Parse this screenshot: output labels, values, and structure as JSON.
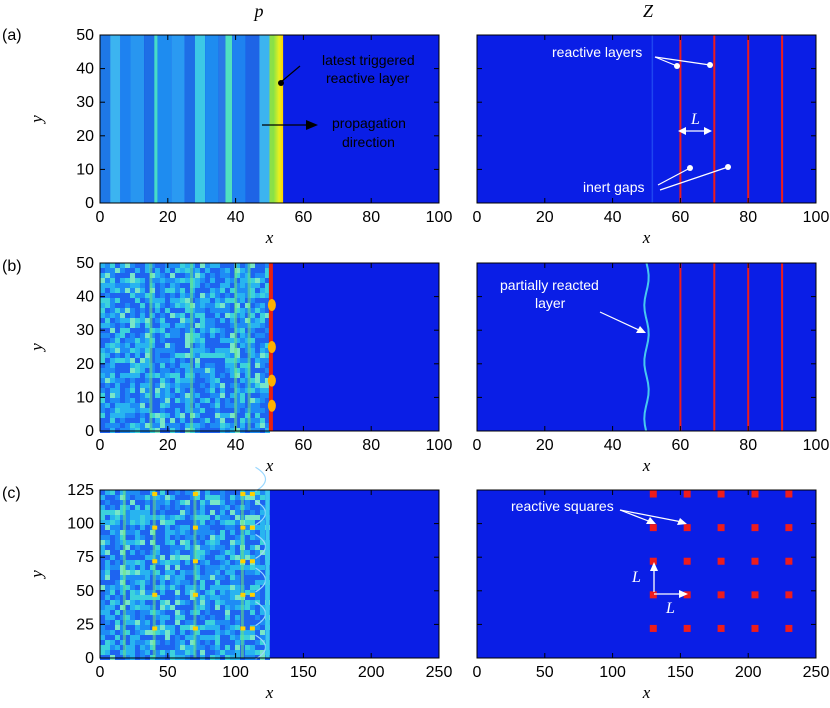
{
  "column_titles": [
    "p",
    "Z"
  ],
  "panel_labels": [
    "(a)",
    "(b)",
    "(c)"
  ],
  "x_label": "x",
  "y_label": "y",
  "rows": [
    {
      "label": "(a)",
      "x_ticks": [
        "0",
        "20",
        "40",
        "60",
        "80",
        "100"
      ],
      "y_ticks": [
        "0",
        "10",
        "20",
        "30",
        "40",
        "50"
      ],
      "x_range": [
        0,
        100
      ],
      "y_range": [
        0,
        50
      ]
    },
    {
      "label": "(b)",
      "x_ticks": [
        "0",
        "20",
        "40",
        "60",
        "80",
        "100"
      ],
      "y_ticks": [
        "0",
        "10",
        "20",
        "30",
        "40",
        "50"
      ],
      "x_range": [
        0,
        100
      ],
      "y_range": [
        0,
        50
      ]
    },
    {
      "label": "(c)",
      "x_ticks": [
        "0",
        "50",
        "100",
        "150",
        "200",
        "250"
      ],
      "y_ticks": [
        "0",
        "25",
        "50",
        "75",
        "100",
        "125"
      ],
      "x_range": [
        0,
        250
      ],
      "y_range": [
        0,
        125
      ]
    }
  ],
  "annotations": {
    "a_p_latest_1": "latest triggered",
    "a_p_latest_2": "reactive layer",
    "a_p_prop_1": "propagation",
    "a_p_prop_2": "direction",
    "a_z_reactive": "reactive layers",
    "a_z_L": "L",
    "a_z_inert": "inert gaps",
    "b_z_partial_1": "partially reacted",
    "b_z_partial_2": "layer",
    "c_z_squares": "reactive squares",
    "c_z_L1": "L",
    "c_z_L2": "L"
  },
  "colors": {
    "background_field": "#0a1ee6",
    "reactive": "#ee1c1c",
    "front": "#ffe600",
    "white": "#ffffff"
  },
  "chart_data": [
    {
      "type": "heatmap",
      "title": "p",
      "panel": "(a)",
      "xlabel": "x",
      "ylabel": "y",
      "xlim": [
        0,
        100
      ],
      "ylim": [
        0,
        50
      ],
      "front_x": 54
    },
    {
      "type": "heatmap",
      "title": "Z",
      "panel": "(a)",
      "xlabel": "x",
      "ylabel": "y",
      "xlim": [
        0,
        100
      ],
      "ylim": [
        0,
        50
      ],
      "reactive_layer_x": [
        60,
        70,
        80,
        90
      ]
    },
    {
      "type": "heatmap",
      "title": "p",
      "panel": "(b)",
      "xlabel": "x",
      "ylabel": "y",
      "xlim": [
        0,
        100
      ],
      "ylim": [
        0,
        50
      ],
      "front_x": 51
    },
    {
      "type": "heatmap",
      "title": "Z",
      "panel": "(b)",
      "xlabel": "x",
      "ylabel": "y",
      "xlim": [
        0,
        100
      ],
      "ylim": [
        0,
        50
      ],
      "reactive_layer_x": [
        60,
        70,
        80,
        90
      ],
      "partial_layer_x": 50
    },
    {
      "type": "heatmap",
      "title": "p",
      "panel": "(c)",
      "xlabel": "x",
      "ylabel": "y",
      "xlim": [
        0,
        250
      ],
      "ylim": [
        0,
        125
      ],
      "front_x": 125
    },
    {
      "type": "heatmap",
      "title": "Z",
      "panel": "(c)",
      "xlabel": "x",
      "ylabel": "y",
      "xlim": [
        0,
        250
      ],
      "ylim": [
        0,
        125
      ],
      "reactive_square_x": [
        130,
        155,
        180,
        205,
        230
      ],
      "reactive_square_y": [
        22,
        47,
        72,
        97,
        122
      ]
    }
  ]
}
